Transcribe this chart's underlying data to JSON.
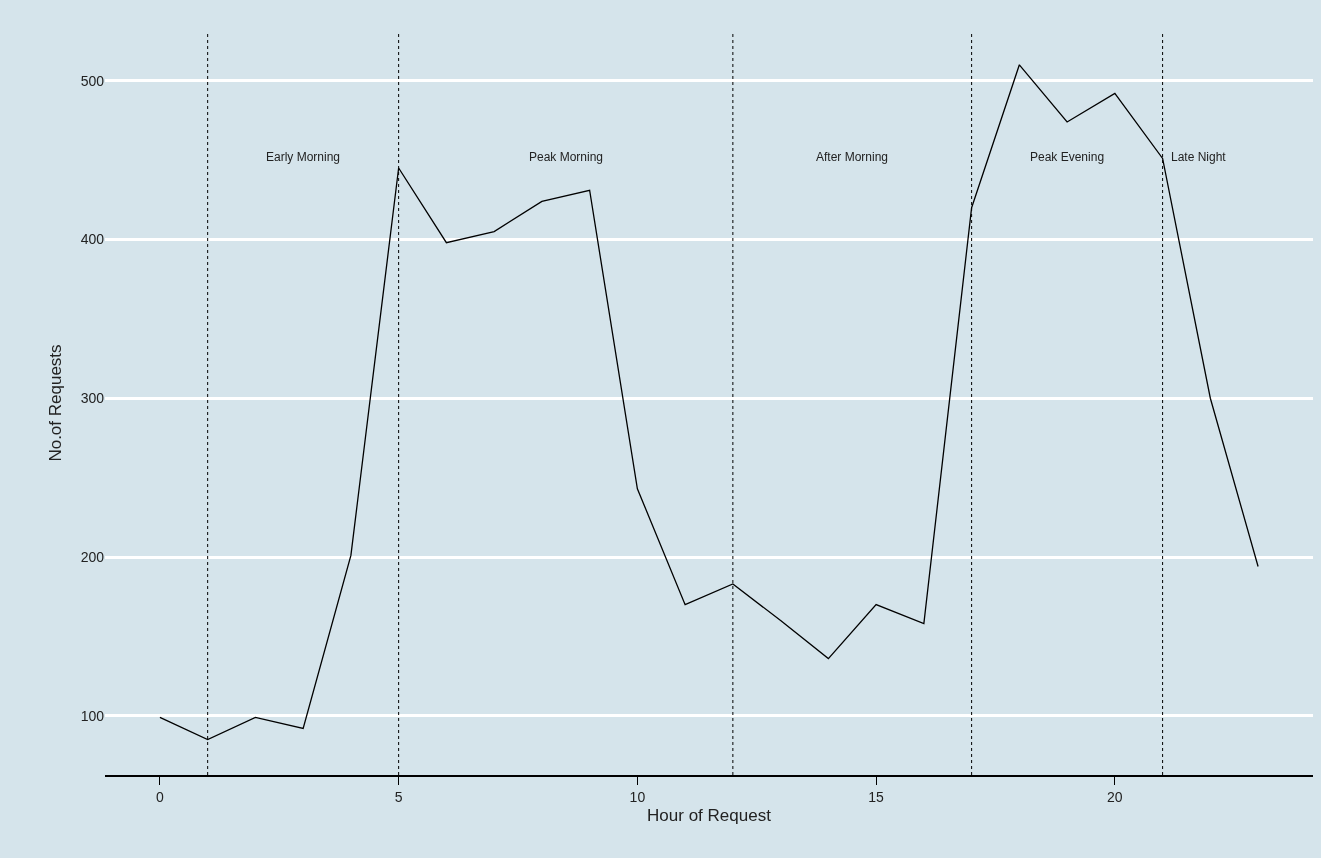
{
  "chart_data": {
    "type": "line",
    "xlabel": "Hour of Request",
    "ylabel": "No.of Requests",
    "x": [
      0,
      1,
      2,
      3,
      4,
      5,
      6,
      7,
      8,
      9,
      10,
      11,
      12,
      13,
      14,
      15,
      16,
      17,
      18,
      19,
      20,
      21,
      22,
      23
    ],
    "series": [
      {
        "color": "#000000",
        "values": [
          99,
          85,
          99,
          92,
          201,
          445,
          398,
          405,
          424,
          431,
          243,
          170,
          183,
          160,
          136,
          170,
          158,
          420,
          510,
          474,
          492,
          451,
          300,
          194
        ]
      }
    ],
    "xlim": [
      -1.15,
      24.15
    ],
    "xticks": [
      0,
      5,
      10,
      15,
      20
    ],
    "ylim": [
      62.7,
      531.3
    ],
    "yticks": [
      100,
      200,
      300,
      400,
      500
    ],
    "grid": "y",
    "marker": "none",
    "line_style": "solid",
    "ref_lines": [
      {
        "axis": "x",
        "value": 1,
        "line_style": "dotted",
        "color": "#000000"
      },
      {
        "axis": "x",
        "value": 5,
        "line_style": "dotted",
        "color": "#000000"
      },
      {
        "axis": "x",
        "value": 12,
        "line_style": "dotted",
        "color": "#000000"
      },
      {
        "axis": "x",
        "value": 17,
        "line_style": "dotted",
        "color": "#000000"
      },
      {
        "axis": "x",
        "value": 21,
        "line_style": "dotted",
        "color": "#000000"
      }
    ],
    "annotations": [
      "Early Morning",
      "Peak Morning",
      "After Morning",
      "Peak Evening",
      "Late Night"
    ]
  }
}
